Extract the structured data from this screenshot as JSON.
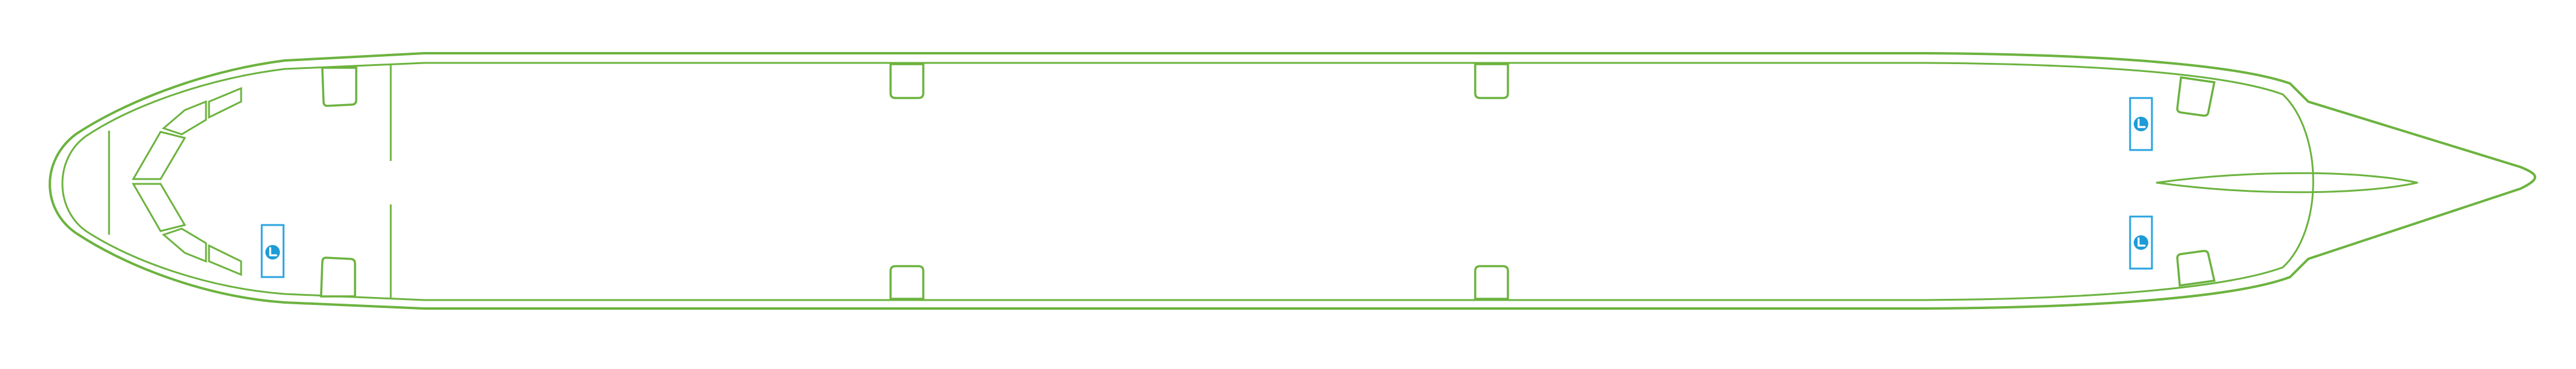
{
  "diagram": {
    "kind": "aircraft-cabin-plan",
    "orientation": "nose-left",
    "colors": {
      "outline": "#6cb33f",
      "exit_marker": "#1e9bd7",
      "background": "#ffffff"
    },
    "exit_markers": [
      {
        "id": "exit-front-left",
        "icon": "emergency-exit-icon"
      },
      {
        "id": "exit-rear-upper",
        "icon": "emergency-exit-icon"
      },
      {
        "id": "exit-rear-lower",
        "icon": "emergency-exit-icon"
      }
    ]
  }
}
